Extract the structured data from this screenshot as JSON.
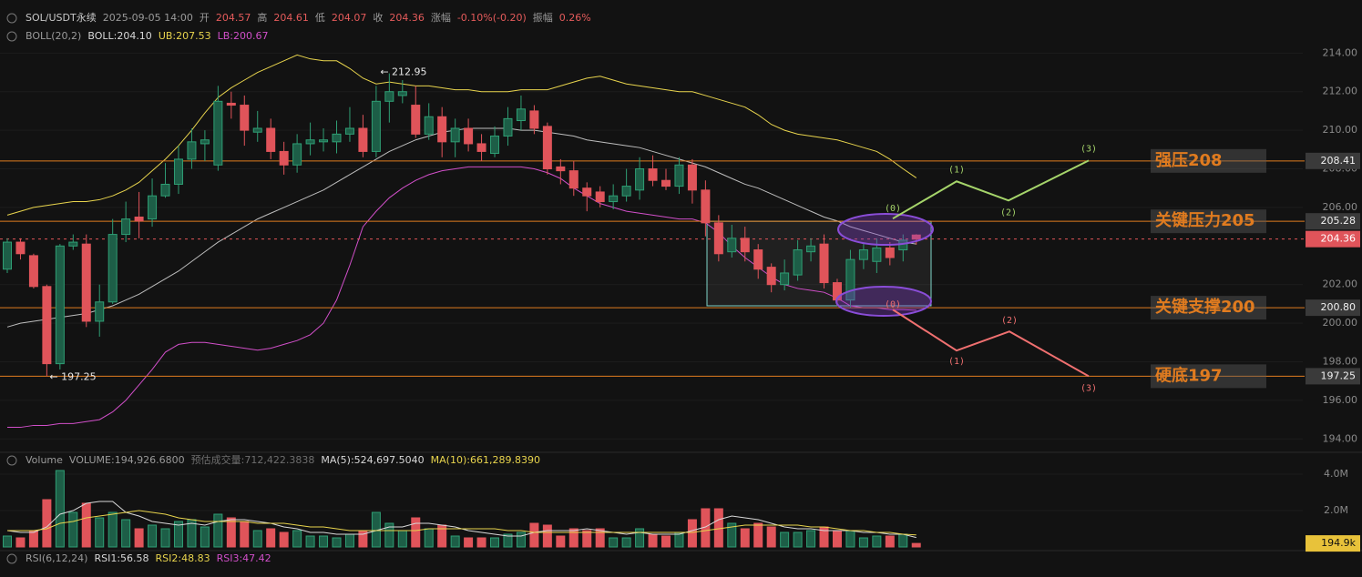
{
  "header": {
    "items": [
      {
        "text": "SOL/USDT永续",
        "color": "#c8c8c8"
      },
      {
        "text": "2025-09-05 14:00",
        "color": "#9a9a9a"
      },
      {
        "text": "开",
        "color": "#9a9a9a"
      },
      {
        "text": "204.57",
        "color": "#e55b5b"
      },
      {
        "text": "高",
        "color": "#9a9a9a"
      },
      {
        "text": "204.61",
        "color": "#e55b5b"
      },
      {
        "text": "低",
        "color": "#9a9a9a"
      },
      {
        "text": "204.07",
        "color": "#e55b5b"
      },
      {
        "text": "收",
        "color": "#9a9a9a"
      },
      {
        "text": "204.36",
        "color": "#e55b5b"
      },
      {
        "text": "涨幅",
        "color": "#9a9a9a"
      },
      {
        "text": "-0.10%(-0.20)",
        "color": "#e55b5b"
      },
      {
        "text": "振幅",
        "color": "#9a9a9a"
      },
      {
        "text": "0.26%",
        "color": "#e55b5b"
      }
    ]
  },
  "boll_legend": {
    "items": [
      {
        "text": "BOLL(20,2)",
        "color": "#9a9a9a"
      },
      {
        "text": "BOLL:204.10",
        "color": "#d8d8d8"
      },
      {
        "text": "UB:207.53",
        "color": "#e8d44d"
      },
      {
        "text": "LB:200.67",
        "color": "#d14fc9"
      }
    ]
  },
  "volume_legend": {
    "items": [
      {
        "text": "Volume",
        "color": "#9a9a9a"
      },
      {
        "text": "VOLUME:194,926.6800",
        "color": "#9a9a9a"
      },
      {
        "text": "预估成交量:712,422.3838",
        "color": "#6e6e6e"
      },
      {
        "text": "MA(5):524,697.5040",
        "color": "#d8d8d8"
      },
      {
        "text": "MA(10):661,289.8390",
        "color": "#e8d44d"
      }
    ]
  },
  "rsi_legend": {
    "items": [
      {
        "text": "RSI(6,12,24)",
        "color": "#9a9a9a"
      },
      {
        "text": "RSI1:56.58",
        "color": "#d8d8d8"
      },
      {
        "text": "RSI2:48.83",
        "color": "#e8d44d"
      },
      {
        "text": "RSI3:47.42",
        "color": "#d14fc9"
      }
    ]
  },
  "chart_data": [
    {
      "type": "candlestick",
      "up_color": "#2f9e74",
      "down_color": "#e0545a",
      "ylim": [
        193.4,
        215.1
      ],
      "yticks": [
        {
          "value": 214,
          "label": "214.00"
        },
        {
          "value": 212,
          "label": "212.00"
        },
        {
          "value": 210,
          "label": "210.00"
        },
        {
          "value": 208,
          "label": "208.00"
        },
        {
          "value": 206,
          "label": "206.00"
        },
        {
          "value": 202,
          "label": "202.00"
        },
        {
          "value": 200,
          "label": "200.00"
        },
        {
          "value": 198,
          "label": "198.00"
        },
        {
          "value": 196,
          "label": "196.00"
        },
        {
          "value": 194,
          "label": "194.00"
        }
      ],
      "open": [
        202.8,
        204.2,
        203.5,
        201.9,
        197.9,
        204.0,
        204.1,
        200.1,
        201.1,
        204.6,
        205.5,
        205.4,
        206.6,
        207.2,
        208.5,
        209.3,
        208.2,
        211.4,
        211.3,
        209.9,
        210.1,
        208.9,
        208.2,
        209.3,
        209.4,
        209.4,
        209.8,
        210.1,
        208.9,
        211.5,
        211.8,
        211.3,
        209.8,
        210.7,
        209.4,
        210.1,
        209.3,
        208.8,
        209.7,
        210.5,
        211.0,
        210.2,
        208.1,
        207.9,
        207.0,
        206.8,
        206.3,
        206.6,
        206.9,
        208.0,
        207.4,
        207.1,
        208.2,
        206.9,
        205.2,
        203.7,
        204.4,
        203.8,
        202.9,
        202.0,
        202.5,
        203.7,
        204.1,
        202.1,
        201.2,
        203.3,
        203.2,
        203.9,
        203.8,
        204.57
      ],
      "high": [
        204.4,
        204.4,
        203.6,
        202.0,
        204.1,
        204.6,
        204.6,
        202.0,
        205.4,
        206.3,
        206.8,
        207.5,
        208.3,
        209.2,
        210.1,
        210.0,
        212.3,
        212.0,
        211.8,
        211.0,
        210.6,
        209.4,
        209.8,
        210.4,
        210.1,
        210.5,
        211.2,
        210.8,
        212.3,
        212.95,
        212.6,
        212.3,
        211.4,
        211.2,
        210.6,
        210.6,
        209.8,
        210.2,
        211.2,
        211.8,
        211.3,
        210.4,
        208.5,
        208.4,
        207.3,
        207.1,
        207.2,
        208.0,
        208.6,
        208.7,
        208.0,
        208.6,
        208.5,
        207.4,
        205.6,
        205.1,
        205.0,
        204.1,
        203.1,
        203.3,
        204.3,
        204.4,
        204.6,
        202.3,
        203.8,
        204.1,
        204.4,
        204.2,
        204.6,
        204.61
      ],
      "low": [
        202.6,
        203.3,
        201.8,
        197.25,
        197.6,
        203.8,
        199.8,
        199.3,
        201.0,
        204.2,
        204.4,
        205.0,
        206.5,
        206.7,
        208.0,
        208.4,
        207.9,
        210.6,
        209.2,
        209.4,
        208.5,
        207.7,
        207.8,
        208.7,
        208.9,
        208.8,
        209.4,
        208.6,
        208.6,
        210.4,
        211.4,
        209.6,
        209.5,
        208.6,
        208.6,
        208.9,
        208.4,
        208.6,
        209.2,
        210.0,
        209.8,
        207.7,
        207.2,
        206.6,
        205.8,
        206.0,
        205.9,
        206.3,
        206.4,
        207.1,
        206.9,
        206.7,
        206.2,
        204.5,
        203.2,
        203.4,
        203.2,
        202.3,
        201.6,
        201.7,
        202.2,
        203.2,
        201.8,
        200.9,
        200.8,
        202.8,
        202.6,
        203.0,
        203.2,
        204.07
      ],
      "close": [
        204.2,
        203.6,
        201.9,
        197.9,
        204.0,
        204.2,
        200.1,
        201.1,
        204.6,
        205.4,
        205.3,
        206.6,
        207.2,
        208.5,
        209.4,
        209.5,
        211.5,
        211.3,
        210.0,
        210.1,
        208.9,
        208.2,
        209.3,
        209.5,
        209.5,
        209.8,
        210.1,
        208.9,
        211.5,
        212.0,
        212.0,
        209.8,
        210.7,
        209.4,
        210.1,
        209.3,
        208.9,
        209.7,
        210.6,
        211.1,
        210.1,
        208.0,
        207.9,
        207.0,
        206.6,
        206.3,
        206.6,
        207.1,
        208.0,
        207.4,
        207.1,
        208.2,
        206.9,
        205.2,
        203.6,
        204.4,
        203.7,
        202.8,
        202.0,
        202.6,
        203.8,
        204.0,
        202.1,
        201.2,
        203.3,
        203.8,
        203.9,
        203.4,
        204.3,
        204.36
      ],
      "overlays": [
        {
          "color": "#e8d44d",
          "values": [
            205.6,
            205.8,
            206.0,
            206.1,
            206.2,
            206.3,
            206.3,
            206.4,
            206.6,
            206.9,
            207.3,
            207.9,
            208.5,
            209.2,
            210.0,
            210.9,
            211.7,
            212.2,
            212.6,
            213.0,
            213.3,
            213.6,
            213.9,
            213.7,
            213.6,
            213.6,
            213.2,
            212.7,
            212.4,
            212.5,
            212.4,
            212.3,
            212.3,
            212.2,
            212.1,
            212.1,
            212.0,
            212.0,
            212.0,
            212.1,
            212.1,
            212.1,
            212.3,
            212.5,
            212.7,
            212.8,
            212.6,
            212.4,
            212.3,
            212.2,
            212.1,
            212.0,
            212.0,
            211.8,
            211.6,
            211.4,
            211.2,
            210.8,
            210.3,
            210.0,
            209.8,
            209.7,
            209.6,
            209.5,
            209.3,
            209.1,
            208.9,
            208.5,
            208.0,
            207.53
          ]
        },
        {
          "color": "#bdbdbd",
          "values": [
            199.8,
            200.0,
            200.1,
            200.2,
            200.3,
            200.4,
            200.5,
            200.7,
            200.9,
            201.2,
            201.5,
            201.9,
            202.3,
            202.7,
            203.2,
            203.7,
            204.2,
            204.6,
            205.0,
            205.4,
            205.7,
            206.0,
            206.3,
            206.6,
            206.9,
            207.3,
            207.7,
            208.1,
            208.5,
            208.9,
            209.2,
            209.5,
            209.7,
            209.9,
            210.0,
            210.1,
            210.1,
            210.1,
            210.1,
            210.0,
            210.0,
            209.9,
            209.8,
            209.7,
            209.5,
            209.4,
            209.3,
            209.2,
            209.1,
            208.9,
            208.7,
            208.5,
            208.3,
            208.1,
            207.8,
            207.5,
            207.2,
            207.0,
            206.7,
            206.4,
            206.1,
            205.8,
            205.5,
            205.3,
            205.0,
            204.8,
            204.6,
            204.4,
            204.2,
            204.1
          ]
        },
        {
          "color": "#d14fc9",
          "values": [
            194.6,
            194.6,
            194.7,
            194.7,
            194.8,
            194.8,
            194.9,
            195.0,
            195.4,
            196.0,
            196.8,
            197.6,
            198.5,
            198.9,
            199.0,
            199.0,
            198.9,
            198.8,
            198.7,
            198.6,
            198.7,
            198.9,
            199.1,
            199.4,
            200.0,
            201.2,
            203.0,
            205.0,
            205.8,
            206.5,
            207.0,
            207.4,
            207.7,
            207.9,
            208.0,
            208.1,
            208.1,
            208.1,
            208.1,
            208.1,
            208.0,
            207.8,
            207.5,
            207.0,
            206.6,
            206.2,
            206.0,
            205.8,
            205.7,
            205.6,
            205.5,
            205.4,
            205.4,
            205.2,
            204.7,
            204.0,
            203.4,
            202.9,
            202.4,
            202.0,
            201.8,
            201.7,
            201.6,
            201.3,
            200.9,
            200.8,
            200.8,
            200.7,
            200.7,
            200.67
          ]
        }
      ],
      "levels": [
        {
          "value": 208.41,
          "label": "208.41",
          "text": "强压208"
        },
        {
          "value": 205.28,
          "label": "205.28",
          "text": "关键压力205"
        },
        {
          "value": 200.8,
          "label": "200.80",
          "text": "关键支撑200"
        },
        {
          "value": 197.25,
          "label": "197.25",
          "text": "硬底197"
        }
      ],
      "level_color": "#e07b1f",
      "last": 204.36,
      "last_color": "#e0545a",
      "range_box": {
        "top": 205.28,
        "bottom": 200.9
      },
      "annotations": [
        {
          "text": "← 212.95",
          "value": 212.95
        },
        {
          "text": "← 197.25",
          "value": 197.25
        }
      ],
      "projections": [
        {
          "color": "#a5d46a",
          "values": [
            205.42,
            207.35,
            206.36,
            208.43
          ],
          "labels": [
            "(0)",
            "(1)",
            "(2)",
            "(3)"
          ]
        },
        {
          "color": "#f07070",
          "values": [
            200.7,
            198.58,
            199.57,
            197.25
          ],
          "labels": [
            "(0)",
            "(1)",
            "(2)",
            "(3)"
          ]
        }
      ]
    },
    {
      "type": "bar",
      "ylim": [
        0,
        4.3
      ],
      "yticks": [
        {
          "value": 4,
          "label": "4.0M"
        },
        {
          "value": 2,
          "label": "2.0M"
        }
      ],
      "values": [
        0.6,
        0.5,
        0.9,
        2.6,
        4.2,
        1.9,
        2.4,
        1.6,
        1.9,
        1.5,
        1.0,
        1.2,
        1.0,
        1.4,
        1.5,
        1.1,
        1.8,
        1.6,
        1.4,
        0.9,
        1.0,
        0.8,
        0.9,
        0.6,
        0.6,
        0.5,
        0.7,
        0.9,
        1.9,
        1.3,
        0.9,
        1.6,
        1.0,
        1.2,
        0.6,
        0.5,
        0.5,
        0.5,
        0.7,
        0.8,
        1.3,
        1.2,
        0.6,
        1.0,
        0.9,
        1.0,
        0.5,
        0.5,
        1.0,
        0.7,
        0.6,
        0.8,
        1.5,
        2.1,
        2.1,
        1.3,
        1.0,
        1.3,
        1.1,
        0.8,
        0.8,
        0.9,
        1.1,
        0.9,
        0.9,
        0.5,
        0.6,
        0.6,
        0.7,
        0.1949
      ],
      "overlays": [
        {
          "color": "#d8d8d8",
          "values": [
            0.9,
            0.8,
            0.8,
            1.1,
            1.8,
            2.0,
            2.4,
            2.5,
            2.5,
            1.9,
            1.7,
            1.4,
            1.3,
            1.2,
            1.3,
            1.2,
            1.4,
            1.5,
            1.5,
            1.4,
            1.3,
            1.1,
            1.0,
            0.8,
            0.8,
            0.7,
            0.7,
            0.7,
            0.9,
            1.1,
            1.1,
            1.3,
            1.3,
            1.2,
            1.1,
            0.9,
            0.8,
            0.7,
            0.6,
            0.6,
            0.8,
            0.9,
            0.9,
            0.9,
            1.0,
            0.9,
            0.8,
            0.7,
            0.8,
            0.7,
            0.7,
            0.7,
            0.9,
            1.1,
            1.5,
            1.7,
            1.6,
            1.5,
            1.3,
            1.1,
            1.0,
            1.0,
            0.9,
            0.9,
            0.9,
            0.8,
            0.8,
            0.7,
            0.7,
            0.52
          ]
        },
        {
          "color": "#e8d44d",
          "values": [
            0.9,
            0.9,
            0.9,
            1.0,
            1.3,
            1.4,
            1.6,
            1.7,
            1.8,
            1.9,
            2.0,
            1.9,
            1.8,
            1.6,
            1.5,
            1.4,
            1.4,
            1.4,
            1.4,
            1.3,
            1.3,
            1.3,
            1.2,
            1.1,
            1.1,
            1.0,
            0.9,
            0.9,
            0.9,
            0.9,
            0.9,
            0.9,
            1.0,
            1.0,
            1.0,
            1.0,
            1.0,
            1.0,
            0.9,
            0.9,
            0.8,
            0.8,
            0.8,
            0.8,
            0.8,
            0.8,
            0.8,
            0.8,
            0.8,
            0.8,
            0.8,
            0.8,
            0.8,
            0.9,
            1.0,
            1.1,
            1.2,
            1.2,
            1.2,
            1.2,
            1.2,
            1.1,
            1.1,
            1.0,
            0.9,
            0.9,
            0.8,
            0.8,
            0.7,
            0.66
          ]
        }
      ],
      "last": {
        "value": 0.1949,
        "label": "194.9k"
      },
      "last_color": "#e8c23a"
    }
  ]
}
